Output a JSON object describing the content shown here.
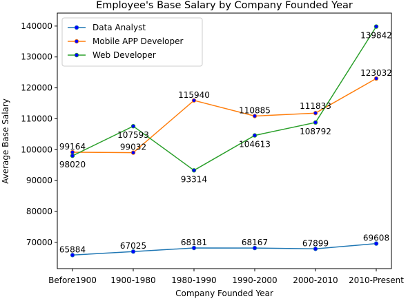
{
  "chart_data": {
    "type": "line",
    "title": "Employee's Base Salary by Company Founded Year",
    "xlabel": "Company Founded Year",
    "ylabel": "Average Base Salary",
    "categories": [
      "Before1900",
      "1900-1980",
      "1980-1990",
      "1990-2000",
      "2000-2010",
      "2010-Present"
    ],
    "ylim": [
      61500,
      144200
    ],
    "yticks": [
      70000,
      80000,
      90000,
      100000,
      110000,
      120000,
      130000,
      140000
    ],
    "grid": false,
    "legend_position": "top-left",
    "marker_color": "#0000ff",
    "series": [
      {
        "name": "Data Analyst",
        "color": "#1f77b4",
        "values": [
          65884,
          67025,
          68181,
          68167,
          67899,
          69608
        ],
        "labels": [
          "65884",
          "67025",
          "68181",
          "68167",
          "67899",
          "69608"
        ]
      },
      {
        "name": "Mobile APP Developer",
        "color": "#ff7f0e",
        "values": [
          99164,
          99032,
          115940,
          110885,
          111833,
          123032
        ],
        "labels": [
          "99164",
          "99032",
          "115940",
          "110885",
          "111833",
          "123032"
        ]
      },
      {
        "name": "Web Developer",
        "color": "#2ca02c",
        "values": [
          98020,
          107593,
          93314,
          104613,
          108792,
          139842
        ],
        "labels": [
          "98020",
          "107593",
          "93314",
          "104613",
          "108792",
          "139842"
        ]
      }
    ]
  }
}
